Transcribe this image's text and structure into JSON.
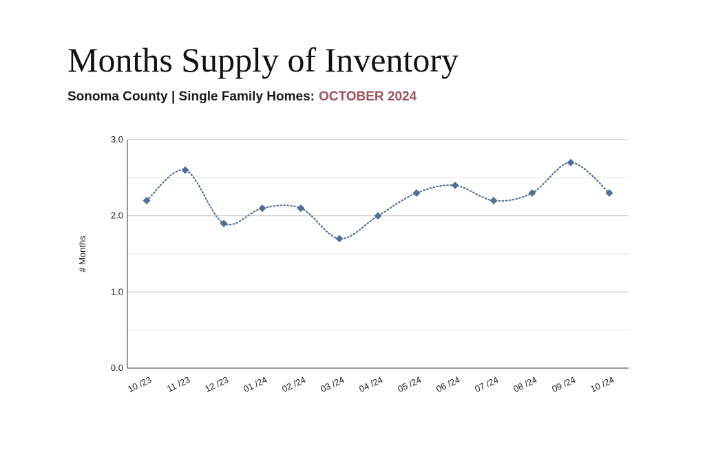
{
  "header": {
    "title": "Months Supply of Inventory",
    "subtitle": "Sonoma County | Single Family Homes:",
    "period": "OCTOBER 2024",
    "period_color": "#a0505a"
  },
  "chart_data": {
    "type": "line",
    "title": "",
    "xlabel": "",
    "ylabel": "# Months",
    "categories": [
      "10 /23",
      "11 /23",
      "12 /23",
      "01 /24",
      "02 /24",
      "03 /24",
      "04 /24",
      "05 /24",
      "06 /24",
      "07 /24",
      "08 /24",
      "09 /24",
      "10 /24"
    ],
    "values": [
      2.2,
      2.6,
      1.9,
      2.1,
      2.1,
      1.7,
      2.0,
      2.3,
      2.4,
      2.2,
      2.3,
      2.7,
      2.3
    ],
    "ylim": [
      0,
      3
    ],
    "yticks": [
      "0.0",
      "1.0",
      "2.0",
      "3.0"
    ],
    "grid": true,
    "line_style": "dotted smooth",
    "marker": "diamond",
    "series_color": "#4f6f96"
  }
}
